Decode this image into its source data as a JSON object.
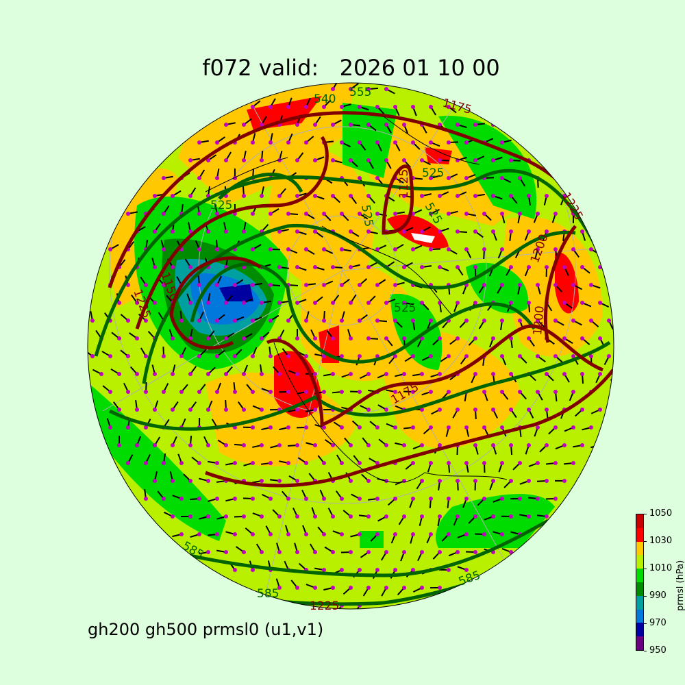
{
  "title": "f072 valid:   2026 01 10 00",
  "subtitle": "gh200 gh500 prmsl0 (u1,v1)",
  "colorbar": {
    "label": "prmsl (hPa)",
    "ticks": [
      "950",
      "970",
      "990",
      "1010",
      "1030",
      "1050"
    ],
    "levels": [
      950,
      960,
      970,
      980,
      990,
      1000,
      1010,
      1020,
      1030,
      1040,
      1050
    ],
    "colors": [
      "#6a0080",
      "#0000a0",
      "#0078dc",
      "#00a0a0",
      "#008c00",
      "#00dc00",
      "#b8f000",
      "#ffc800",
      "#ff0000",
      "#c80000"
    ]
  },
  "map": {
    "projection": "orthographic-north-polar",
    "gh500_color": "#006400",
    "gh200_color": "#800000",
    "wind_marker_color": "#c000c0",
    "contour_labels_gh500": [
      "540",
      "555",
      "525",
      "525",
      "525",
      "525",
      "525",
      "585",
      "585",
      "585"
    ],
    "contour_labels_gh200": [
      "1175",
      "1150",
      "1125",
      "1200",
      "1225",
      "1225",
      "1200",
      "1175",
      "1225"
    ]
  }
}
